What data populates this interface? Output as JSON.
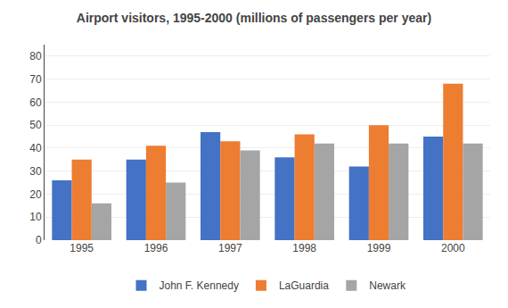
{
  "chart_data": {
    "type": "bar",
    "title": "Airport visitors, 1995-2000 (millions of passengers per year)",
    "categories": [
      "1995",
      "1996",
      "1997",
      "1998",
      "1999",
      "2000"
    ],
    "series": [
      {
        "name": "John F. Kennedy",
        "color": "#4472C4",
        "values": [
          26,
          35,
          47,
          36,
          32,
          45
        ]
      },
      {
        "name": "LaGuardia",
        "color": "#ED7D31",
        "values": [
          35,
          41,
          43,
          46,
          50,
          68
        ]
      },
      {
        "name": "Newark",
        "color": "#A5A5A5",
        "values": [
          16,
          25,
          39,
          42,
          42,
          42
        ]
      }
    ],
    "ylim": [
      0,
      85
    ],
    "yticks": [
      0,
      10,
      20,
      30,
      40,
      50,
      60,
      70,
      80
    ],
    "grid": true,
    "legend": "bottom"
  }
}
